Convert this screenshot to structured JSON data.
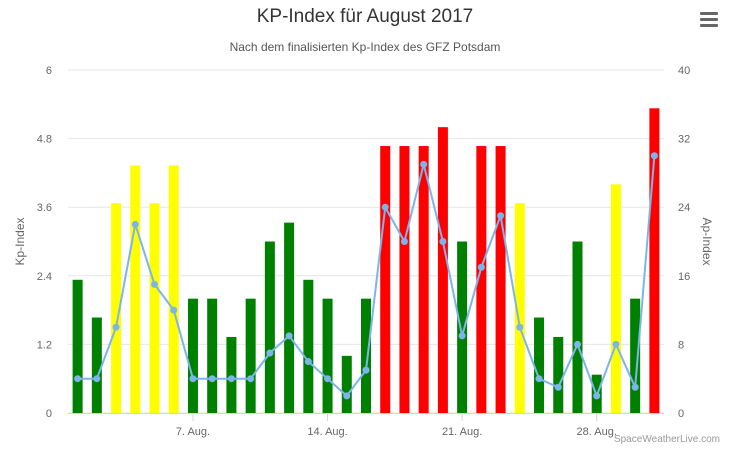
{
  "header": {
    "title": "KP-Index für August 2017",
    "subtitle": "Nach dem finalisierten Kp-Index des GFZ Potsdam",
    "menu_icon": "hamburger-menu-icon"
  },
  "credits": "SpaceWeatherLive.com",
  "colors": {
    "green": "#008000",
    "yellow": "#ffff00",
    "red": "#ff0000",
    "line": "#7cb5ec",
    "grid": "#e6e6e6",
    "axis_text": "#666666"
  },
  "chart_data": {
    "type": "bar",
    "title": "KP-Index für August 2017",
    "subtitle": "Nach dem finalisierten Kp-Index des GFZ Potsdam",
    "x": [
      1,
      2,
      3,
      4,
      5,
      6,
      7,
      8,
      9,
      10,
      11,
      12,
      13,
      14,
      15,
      16,
      17,
      18,
      19,
      20,
      21,
      22,
      23,
      24,
      25,
      26,
      27,
      28,
      29,
      30,
      31
    ],
    "x_ticks": [
      {
        "day": 7,
        "label": "7. Aug."
      },
      {
        "day": 14,
        "label": "14. Aug."
      },
      {
        "day": 21,
        "label": "21. Aug."
      },
      {
        "day": 28,
        "label": "28. Aug."
      }
    ],
    "y_left": {
      "label": "Kp-Index",
      "ticks": [
        "0",
        "1.2",
        "2.4",
        "3.6",
        "4.8",
        "6"
      ],
      "lim": [
        0,
        6
      ]
    },
    "y_right": {
      "label": "Ap-Index",
      "ticks": [
        "0",
        "8",
        "16",
        "24",
        "32",
        "40"
      ],
      "lim": [
        0,
        40
      ]
    },
    "grid": true,
    "legend": "none",
    "series": [
      {
        "type": "bar",
        "axis": "left",
        "values": [
          2.33,
          1.67,
          3.67,
          4.33,
          3.67,
          4.33,
          2.0,
          2.0,
          1.33,
          2.0,
          3.0,
          3.33,
          2.33,
          2.0,
          1.0,
          2.0,
          4.67,
          4.67,
          4.67,
          5.0,
          3.0,
          4.67,
          4.67,
          3.67,
          1.67,
          1.33,
          3.0,
          0.67,
          4.0,
          2.0,
          5.33
        ],
        "colors": [
          "green",
          "green",
          "yellow",
          "yellow",
          "yellow",
          "yellow",
          "green",
          "green",
          "green",
          "green",
          "green",
          "green",
          "green",
          "green",
          "green",
          "green",
          "red",
          "red",
          "red",
          "red",
          "green",
          "red",
          "red",
          "yellow",
          "green",
          "green",
          "green",
          "green",
          "yellow",
          "green",
          "red"
        ]
      },
      {
        "type": "line",
        "axis": "right",
        "values": [
          4,
          4,
          10,
          22,
          15,
          12,
          4,
          4,
          4,
          4,
          7,
          9,
          6,
          4,
          2,
          5,
          24,
          20,
          29,
          20,
          9,
          17,
          23,
          10,
          4,
          3,
          8,
          2,
          8,
          3,
          30
        ]
      }
    ]
  }
}
